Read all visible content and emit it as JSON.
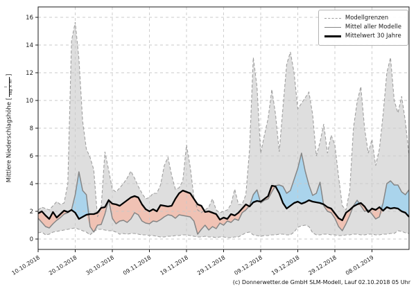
{
  "footer": {
    "credit": "(c) Donnerwetter.de GmbH SLM-Modell, Lauf 02.10.2018 05 Uhr"
  },
  "chart_data": {
    "type": "area",
    "title": "",
    "ylabel_prefix": "Mittlere Niederschlagshöhe [",
    "ylabel_suffix": "]",
    "unit_numerator": "l",
    "unit_denominator": "Tag × m²",
    "legend": [
      {
        "label": "Modellgrenzen",
        "style": "dashed-gray"
      },
      {
        "label": "Mittel aller Modelle",
        "style": "solid-gray"
      },
      {
        "label": "Mittelwert 30 Jahre",
        "style": "solid-black-thick"
      }
    ],
    "legend_position": "upper right",
    "grid": true,
    "ylim": [
      -0.75,
      16.75
    ],
    "y_ticks": [
      0,
      2,
      4,
      6,
      8,
      10,
      12,
      14,
      16
    ],
    "x_range_days": [
      0,
      100
    ],
    "x_tick_days": [
      0,
      10,
      20,
      30,
      40,
      50,
      60,
      70,
      80,
      90
    ],
    "x_ticklabels": [
      "10.10.2018",
      "20.10.2018",
      "30.10.2018",
      "09.11.2018",
      "19.11.2018",
      "29.11.2018",
      "09.12.2018",
      "19.12.2018",
      "29.12.2018",
      "08.01.2019"
    ],
    "series": {
      "model_max": [
        2.1,
        2.3,
        2.2,
        2.1,
        2.4,
        2.7,
        2.5,
        2.6,
        4.0,
        14.3,
        15.65,
        13.0,
        8.5,
        6.5,
        5.9,
        5.0,
        1.6,
        2.3,
        6.3,
        5.0,
        3.6,
        3.4,
        3.7,
        4.0,
        4.4,
        4.9,
        4.4,
        3.8,
        3.3,
        2.9,
        3.0,
        3.3,
        3.3,
        3.9,
        5.3,
        5.9,
        4.6,
        3.6,
        3.7,
        4.2,
        6.8,
        5.2,
        3.0,
        2.1,
        1.9,
        2.1,
        2.3,
        2.9,
        2.1,
        1.9,
        2.0,
        2.1,
        2.5,
        3.6,
        2.5,
        2.5,
        3.2,
        6.5,
        13.1,
        11.0,
        6.2,
        7.5,
        8.7,
        10.8,
        9.0,
        6.3,
        9.5,
        12.6,
        13.5,
        12.0,
        9.4,
        9.8,
        10.2,
        10.6,
        9.0,
        6.0,
        7.0,
        8.3,
        6.2,
        7.5,
        6.8,
        4.5,
        2.4,
        2.1,
        3.5,
        8.0,
        9.9,
        11.0,
        8.0,
        6.2,
        7.2,
        5.3,
        6.5,
        9.0,
        12.0,
        13.1,
        10.0,
        9.1,
        10.3,
        8.5,
        6.0
      ],
      "model_min": [
        0.45,
        0.5,
        0.3,
        0.35,
        0.5,
        0.55,
        0.6,
        0.65,
        0.7,
        0.75,
        0.8,
        0.7,
        0.6,
        0.5,
        0.3,
        0.55,
        0.7,
        0.7,
        0.65,
        0.6,
        0.6,
        0.5,
        0.35,
        0.4,
        0.35,
        0.4,
        0.4,
        0.35,
        0.3,
        0.3,
        0.25,
        0.25,
        0.2,
        0.15,
        0.15,
        0.2,
        0.2,
        0.25,
        0.25,
        0.3,
        0.3,
        0.25,
        0.2,
        0.15,
        0.15,
        0.2,
        0.15,
        0.15,
        0.1,
        0.15,
        0.15,
        0.1,
        0.1,
        0.15,
        0.15,
        0.3,
        0.45,
        0.5,
        0.3,
        0.25,
        0.2,
        0.25,
        0.25,
        0.3,
        0.3,
        0.35,
        0.35,
        0.3,
        0.3,
        0.5,
        0.85,
        0.95,
        1.0,
        0.9,
        0.45,
        0.3,
        0.3,
        0.35,
        0.35,
        0.3,
        0.3,
        0.25,
        0.25,
        0.3,
        0.3,
        0.35,
        0.35,
        0.3,
        0.3,
        0.35,
        0.35,
        0.3,
        0.3,
        0.35,
        0.35,
        0.4,
        0.4,
        0.6,
        0.55,
        0.45,
        0.4
      ],
      "model_mean": [
        1.5,
        1.2,
        0.9,
        0.8,
        1.1,
        1.35,
        1.55,
        1.8,
        1.9,
        2.1,
        3.2,
        4.85,
        3.5,
        3.2,
        0.9,
        0.5,
        1.0,
        1.05,
        1.8,
        2.85,
        1.5,
        1.1,
        1.3,
        1.35,
        1.2,
        1.45,
        1.9,
        1.75,
        1.3,
        1.15,
        1.1,
        1.3,
        1.25,
        1.4,
        1.6,
        1.75,
        1.7,
        1.5,
        1.75,
        1.7,
        1.65,
        1.6,
        1.3,
        0.35,
        0.7,
        1.0,
        0.65,
        0.9,
        0.75,
        1.15,
        1.0,
        1.3,
        1.2,
        1.45,
        1.35,
        1.9,
        2.1,
        2.4,
        3.2,
        3.55,
        2.6,
        2.8,
        2.9,
        3.4,
        3.85,
        3.9,
        3.8,
        3.3,
        3.5,
        4.3,
        5.1,
        6.2,
        4.9,
        3.9,
        3.15,
        3.3,
        4.1,
        2.4,
        2.0,
        1.9,
        1.5,
        0.9,
        0.6,
        1.1,
        1.7,
        2.4,
        2.8,
        2.4,
        2.0,
        2.1,
        1.8,
        1.45,
        1.6,
        2.6,
        4.0,
        4.2,
        3.9,
        3.9,
        3.4,
        3.2,
        3.55
      ],
      "mean_30y": [
        1.85,
        2.0,
        1.7,
        1.45,
        1.95,
        1.55,
        1.8,
        2.05,
        1.95,
        2.1,
        1.9,
        1.45,
        1.6,
        1.75,
        1.8,
        1.8,
        1.9,
        2.25,
        2.3,
        2.8,
        2.55,
        2.5,
        2.4,
        2.6,
        2.8,
        3.0,
        3.1,
        3.0,
        2.5,
        2.15,
        2.0,
        2.15,
        2.0,
        2.45,
        2.4,
        2.35,
        2.4,
        2.9,
        3.3,
        3.5,
        3.4,
        3.3,
        2.9,
        2.5,
        2.4,
        1.95,
        2.0,
        1.9,
        1.8,
        1.4,
        1.55,
        1.45,
        1.8,
        1.7,
        1.9,
        2.2,
        2.5,
        2.35,
        2.65,
        2.75,
        2.7,
        2.9,
        3.1,
        3.85,
        3.8,
        3.3,
        2.6,
        2.2,
        2.4,
        2.6,
        2.7,
        2.55,
        2.65,
        2.8,
        2.7,
        2.65,
        2.6,
        2.5,
        2.3,
        2.2,
        1.85,
        1.5,
        1.35,
        1.9,
        2.1,
        2.35,
        2.5,
        2.6,
        2.35,
        1.95,
        2.2,
        2.1,
        2.3,
        2.05,
        2.3,
        2.2,
        2.25,
        2.2,
        2.0,
        1.9,
        1.6
      ]
    },
    "colors": {
      "band_fill": "#dedede",
      "band_edge": "#9e9e9e",
      "above_mean_fill": "#aad4ec",
      "below_mean_fill": "#f0c2b4",
      "model_mean_line": "#858585",
      "mean_30y_line": "#000000",
      "grid": "#c9c9c9",
      "spine": "#1a1a1a"
    }
  }
}
